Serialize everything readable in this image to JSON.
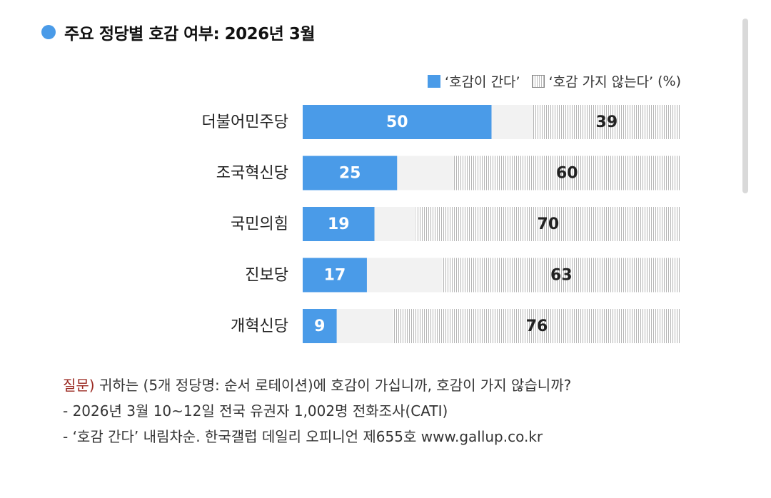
{
  "title": "주요 정당별 호감 여부: 2026년 3월",
  "legend": {
    "positive": "‘호감이 간다’",
    "negative": "‘호감 가지 않는다’",
    "unit": "(%)"
  },
  "colors": {
    "positive": "#4a9be8",
    "track": "#f2f2f2",
    "negative_hatch": "#b5b5b5",
    "question_label": "#9b2a22"
  },
  "chart_data": {
    "type": "bar",
    "orientation": "horizontal",
    "stacked": true,
    "categories": [
      "더불어민주당",
      "조국혁신당",
      "국민의힘",
      "진보당",
      "개혁신당"
    ],
    "series": [
      {
        "name": "‘호감이 간다’",
        "values": [
          50,
          25,
          19,
          17,
          9
        ]
      },
      {
        "name": "‘호감 가지 않는다’",
        "values": [
          39,
          60,
          70,
          63,
          76
        ]
      }
    ],
    "xlim": [
      0,
      100
    ],
    "grid": false,
    "legend_position": "top-right",
    "title": "주요 정당별 호감 여부: 2026년 3월"
  },
  "footer": {
    "question_label": "질문)",
    "question_text": " 귀하는 (5개 정당명: 순서 로테이션)에 호감이 가십니까, 호감이 가지 않습니까?",
    "line2": "- 2026년 3월 10~12일 전국 유권자 1,002명 전화조사(CATI)",
    "line3": "- ‘호감 간다’ 내림차순. 한국갤럽 데일리 오피니언 제655호 www.gallup.co.kr"
  }
}
